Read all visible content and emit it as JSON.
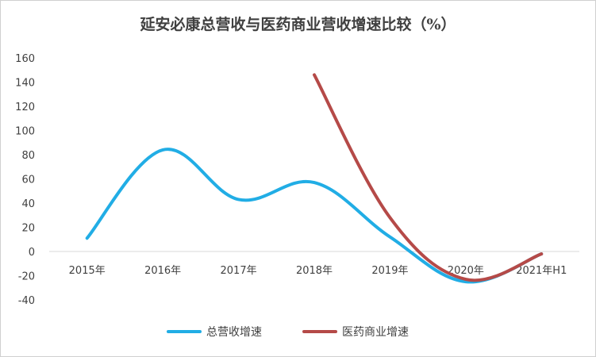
{
  "chart_data": {
    "type": "line",
    "title": "延安必康总营收与医药商业营收增速比较（%）",
    "xlabel": "",
    "ylabel": "",
    "categories": [
      "2015年",
      "2016年",
      "2017年",
      "2018年",
      "2019年",
      "2020年",
      "2021年H1"
    ],
    "ylim": [
      -40,
      160
    ],
    "yticks": [
      -40,
      -20,
      0,
      20,
      40,
      60,
      80,
      100,
      120,
      140,
      160
    ],
    "grid": false,
    "smooth": true,
    "legend_position": "bottom",
    "series": [
      {
        "name": "总营收增速",
        "color": "#21ade5",
        "values": [
          11,
          84,
          43,
          57,
          12,
          -25,
          -2
        ]
      },
      {
        "name": "医药商业增速",
        "color": "#b54a48",
        "values": [
          null,
          null,
          null,
          146,
          28,
          -23,
          -2
        ]
      }
    ]
  }
}
